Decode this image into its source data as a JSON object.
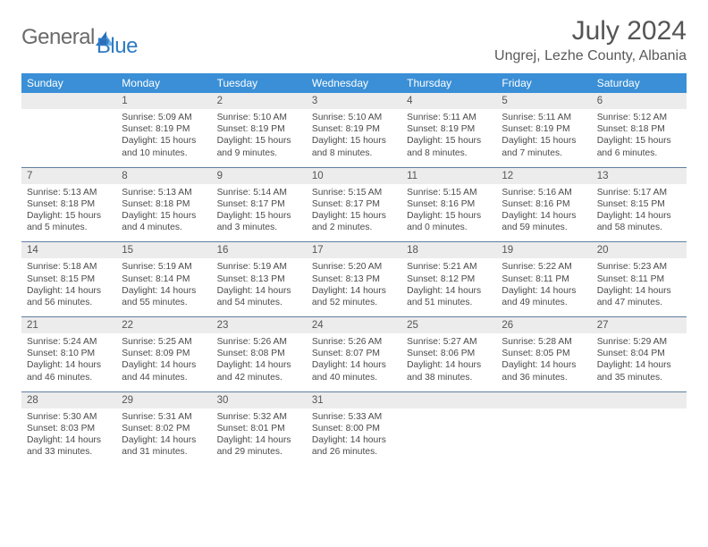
{
  "logo": {
    "part1": "General",
    "part2": "Blue"
  },
  "title": "July 2024",
  "location": "Ungrej, Lezhe County, Albania",
  "colors": {
    "header_bg": "#3a8fd6",
    "header_fg": "#ffffff",
    "daynum_bg": "#ececec",
    "rule": "#5f7fa0",
    "text": "#4a4a4a",
    "logo_gray": "#6a6a6a",
    "logo_blue": "#2f7bc4"
  },
  "day_labels": [
    "Sunday",
    "Monday",
    "Tuesday",
    "Wednesday",
    "Thursday",
    "Friday",
    "Saturday"
  ],
  "weeks": [
    [
      {
        "num": "",
        "sr": "",
        "ss": "",
        "dl": ""
      },
      {
        "num": "1",
        "sr": "Sunrise: 5:09 AM",
        "ss": "Sunset: 8:19 PM",
        "dl": "Daylight: 15 hours and 10 minutes."
      },
      {
        "num": "2",
        "sr": "Sunrise: 5:10 AM",
        "ss": "Sunset: 8:19 PM",
        "dl": "Daylight: 15 hours and 9 minutes."
      },
      {
        "num": "3",
        "sr": "Sunrise: 5:10 AM",
        "ss": "Sunset: 8:19 PM",
        "dl": "Daylight: 15 hours and 8 minutes."
      },
      {
        "num": "4",
        "sr": "Sunrise: 5:11 AM",
        "ss": "Sunset: 8:19 PM",
        "dl": "Daylight: 15 hours and 8 minutes."
      },
      {
        "num": "5",
        "sr": "Sunrise: 5:11 AM",
        "ss": "Sunset: 8:19 PM",
        "dl": "Daylight: 15 hours and 7 minutes."
      },
      {
        "num": "6",
        "sr": "Sunrise: 5:12 AM",
        "ss": "Sunset: 8:18 PM",
        "dl": "Daylight: 15 hours and 6 minutes."
      }
    ],
    [
      {
        "num": "7",
        "sr": "Sunrise: 5:13 AM",
        "ss": "Sunset: 8:18 PM",
        "dl": "Daylight: 15 hours and 5 minutes."
      },
      {
        "num": "8",
        "sr": "Sunrise: 5:13 AM",
        "ss": "Sunset: 8:18 PM",
        "dl": "Daylight: 15 hours and 4 minutes."
      },
      {
        "num": "9",
        "sr": "Sunrise: 5:14 AM",
        "ss": "Sunset: 8:17 PM",
        "dl": "Daylight: 15 hours and 3 minutes."
      },
      {
        "num": "10",
        "sr": "Sunrise: 5:15 AM",
        "ss": "Sunset: 8:17 PM",
        "dl": "Daylight: 15 hours and 2 minutes."
      },
      {
        "num": "11",
        "sr": "Sunrise: 5:15 AM",
        "ss": "Sunset: 8:16 PM",
        "dl": "Daylight: 15 hours and 0 minutes."
      },
      {
        "num": "12",
        "sr": "Sunrise: 5:16 AM",
        "ss": "Sunset: 8:16 PM",
        "dl": "Daylight: 14 hours and 59 minutes."
      },
      {
        "num": "13",
        "sr": "Sunrise: 5:17 AM",
        "ss": "Sunset: 8:15 PM",
        "dl": "Daylight: 14 hours and 58 minutes."
      }
    ],
    [
      {
        "num": "14",
        "sr": "Sunrise: 5:18 AM",
        "ss": "Sunset: 8:15 PM",
        "dl": "Daylight: 14 hours and 56 minutes."
      },
      {
        "num": "15",
        "sr": "Sunrise: 5:19 AM",
        "ss": "Sunset: 8:14 PM",
        "dl": "Daylight: 14 hours and 55 minutes."
      },
      {
        "num": "16",
        "sr": "Sunrise: 5:19 AM",
        "ss": "Sunset: 8:13 PM",
        "dl": "Daylight: 14 hours and 54 minutes."
      },
      {
        "num": "17",
        "sr": "Sunrise: 5:20 AM",
        "ss": "Sunset: 8:13 PM",
        "dl": "Daylight: 14 hours and 52 minutes."
      },
      {
        "num": "18",
        "sr": "Sunrise: 5:21 AM",
        "ss": "Sunset: 8:12 PM",
        "dl": "Daylight: 14 hours and 51 minutes."
      },
      {
        "num": "19",
        "sr": "Sunrise: 5:22 AM",
        "ss": "Sunset: 8:11 PM",
        "dl": "Daylight: 14 hours and 49 minutes."
      },
      {
        "num": "20",
        "sr": "Sunrise: 5:23 AM",
        "ss": "Sunset: 8:11 PM",
        "dl": "Daylight: 14 hours and 47 minutes."
      }
    ],
    [
      {
        "num": "21",
        "sr": "Sunrise: 5:24 AM",
        "ss": "Sunset: 8:10 PM",
        "dl": "Daylight: 14 hours and 46 minutes."
      },
      {
        "num": "22",
        "sr": "Sunrise: 5:25 AM",
        "ss": "Sunset: 8:09 PM",
        "dl": "Daylight: 14 hours and 44 minutes."
      },
      {
        "num": "23",
        "sr": "Sunrise: 5:26 AM",
        "ss": "Sunset: 8:08 PM",
        "dl": "Daylight: 14 hours and 42 minutes."
      },
      {
        "num": "24",
        "sr": "Sunrise: 5:26 AM",
        "ss": "Sunset: 8:07 PM",
        "dl": "Daylight: 14 hours and 40 minutes."
      },
      {
        "num": "25",
        "sr": "Sunrise: 5:27 AM",
        "ss": "Sunset: 8:06 PM",
        "dl": "Daylight: 14 hours and 38 minutes."
      },
      {
        "num": "26",
        "sr": "Sunrise: 5:28 AM",
        "ss": "Sunset: 8:05 PM",
        "dl": "Daylight: 14 hours and 36 minutes."
      },
      {
        "num": "27",
        "sr": "Sunrise: 5:29 AM",
        "ss": "Sunset: 8:04 PM",
        "dl": "Daylight: 14 hours and 35 minutes."
      }
    ],
    [
      {
        "num": "28",
        "sr": "Sunrise: 5:30 AM",
        "ss": "Sunset: 8:03 PM",
        "dl": "Daylight: 14 hours and 33 minutes."
      },
      {
        "num": "29",
        "sr": "Sunrise: 5:31 AM",
        "ss": "Sunset: 8:02 PM",
        "dl": "Daylight: 14 hours and 31 minutes."
      },
      {
        "num": "30",
        "sr": "Sunrise: 5:32 AM",
        "ss": "Sunset: 8:01 PM",
        "dl": "Daylight: 14 hours and 29 minutes."
      },
      {
        "num": "31",
        "sr": "Sunrise: 5:33 AM",
        "ss": "Sunset: 8:00 PM",
        "dl": "Daylight: 14 hours and 26 minutes."
      },
      {
        "num": "",
        "sr": "",
        "ss": "",
        "dl": ""
      },
      {
        "num": "",
        "sr": "",
        "ss": "",
        "dl": ""
      },
      {
        "num": "",
        "sr": "",
        "ss": "",
        "dl": ""
      }
    ]
  ]
}
